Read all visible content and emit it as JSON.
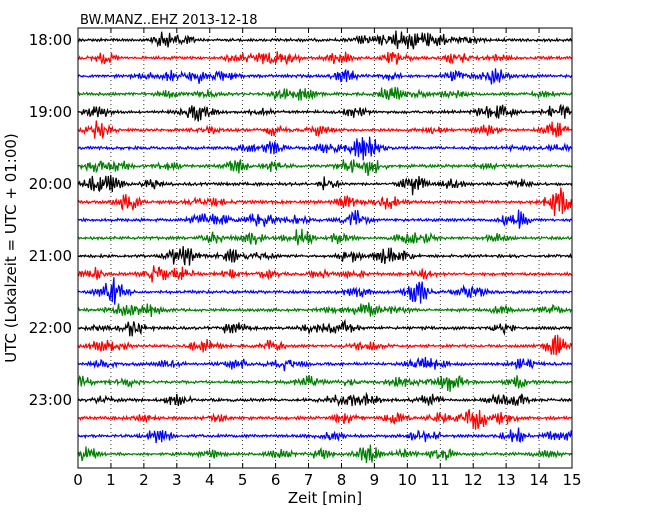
{
  "chart_data": {
    "type": "line",
    "title": "BW.MANZ..EHZ 2013-12-18",
    "xlabel": "Zeit  [min]",
    "ylabel": "UTC (Lokalzeit = UTC + 01:00)",
    "xlim": [
      0,
      15
    ],
    "x_ticks": [
      "0",
      "1",
      "2",
      "3",
      "4",
      "5",
      "6",
      "7",
      "8",
      "9",
      "10",
      "11",
      "12",
      "13",
      "14",
      "15"
    ],
    "y_tick_labels": [
      "18:00",
      "19:00",
      "20:00",
      "21:00",
      "22:00",
      "23:00"
    ],
    "traces_per_hour": 4,
    "minutes_per_trace": 15,
    "trace_colors": [
      "#000000",
      "#ff0000",
      "#0000ff",
      "#008000"
    ],
    "trace_count": 24,
    "grid": "vertical dotted at each minute"
  }
}
